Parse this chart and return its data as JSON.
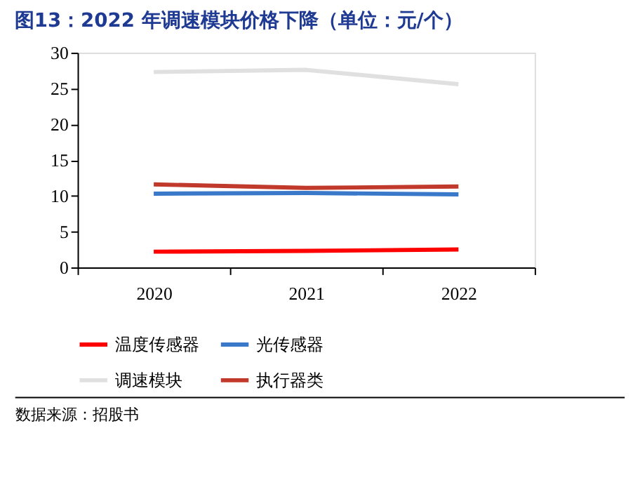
{
  "chart_data": {
    "type": "line",
    "title": "图13：2022 年调速模块价格下降（单位：元/个）",
    "categories": [
      "2020",
      "2021",
      "2022"
    ],
    "series": [
      {
        "name": "温度传感器",
        "color": "#ff0000",
        "values": [
          2.2,
          2.3,
          2.5
        ]
      },
      {
        "name": "光传感器",
        "color": "#3a78c9",
        "values": [
          10.3,
          10.4,
          10.2
        ]
      },
      {
        "name": "调速模块",
        "color": "#e0e0e0",
        "values": [
          27.3,
          27.6,
          25.6
        ]
      },
      {
        "name": "执行器类",
        "color": "#c0392b",
        "values": [
          11.6,
          11.1,
          11.3
        ]
      }
    ],
    "ylim": [
      0,
      30
    ],
    "yticks": [
      0,
      5,
      10,
      15,
      20,
      25,
      30
    ],
    "grid": false,
    "legend": "bottom",
    "marker": "none",
    "line_style": "solid",
    "annotations": [
      "数据来源：招股书"
    ]
  }
}
